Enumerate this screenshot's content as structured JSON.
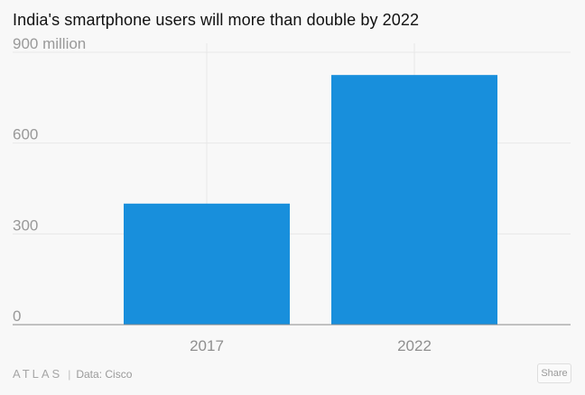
{
  "chart_data": {
    "type": "bar",
    "title": "India's smartphone users will more than double by 2022",
    "categories": [
      "2017",
      "2022"
    ],
    "values": [
      400,
      825
    ],
    "ylim": [
      0,
      900
    ],
    "yticks": [
      0,
      300,
      600,
      900
    ],
    "ytick_labels": [
      "0",
      "300",
      "600",
      "900 million"
    ],
    "grid": true,
    "bar_color": "#188fdc"
  },
  "footer": {
    "logo": "ATLAS",
    "separator": "|",
    "source": "Data: Cisco",
    "share_label": "Share"
  }
}
